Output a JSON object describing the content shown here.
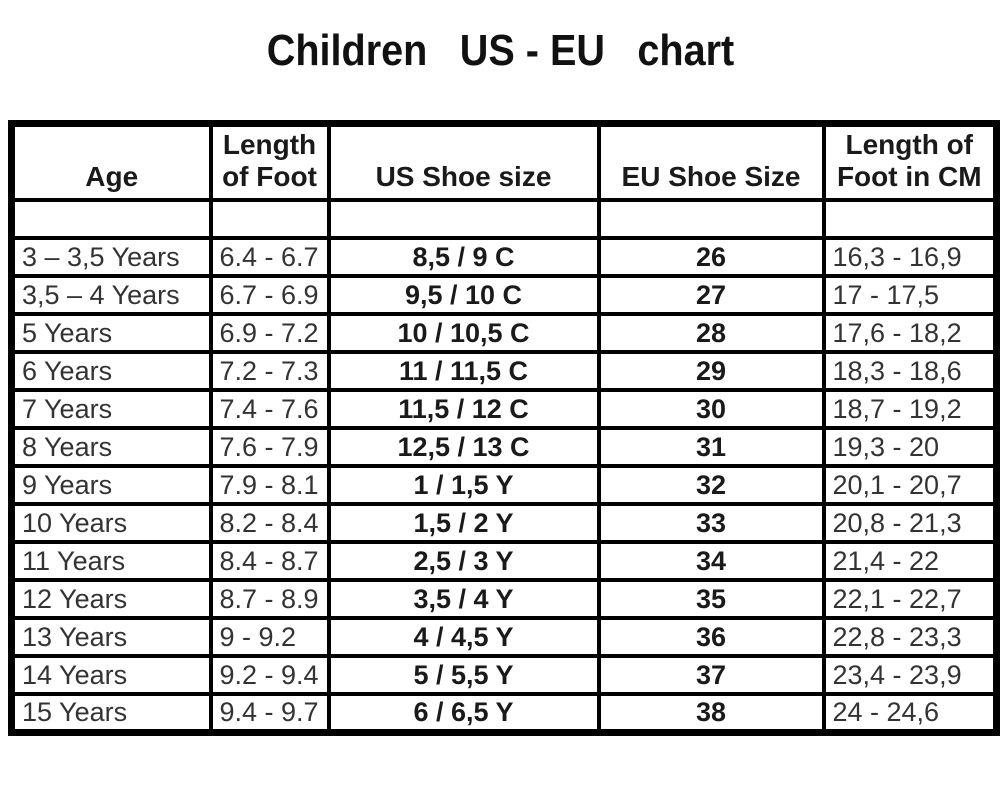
{
  "title": {
    "text": "Children US - EU chart",
    "segments": [
      "Children",
      "US - EU",
      "chart"
    ]
  },
  "colors": {
    "background": "#ffffff",
    "border": "#000000",
    "title_text": "#111111",
    "header_text": "#1a1a1a",
    "cell_text": "#333333",
    "bold_cell_text": "#1a1a1a"
  },
  "table": {
    "header_lines": [
      [
        "Age"
      ],
      [
        "Length",
        "of Foot"
      ],
      [
        "US Shoe size"
      ],
      [
        "EU Shoe Size"
      ],
      [
        "Length of",
        "Foot in CM"
      ]
    ]
  },
  "chart_data": {
    "type": "table",
    "title": "Children US - EU chart",
    "columns": [
      "Age",
      "Length of Foot",
      "US Shoe size",
      "EU Shoe Size",
      "Length of Foot in CM"
    ],
    "rows": [
      [
        "3 – 3,5 Years",
        "6.4 - 6.7",
        "8,5 / 9 C",
        "26",
        "16,3 - 16,9"
      ],
      [
        "3,5 – 4 Years",
        "6.7 - 6.9",
        "9,5 / 10 C",
        "27",
        "17 - 17,5"
      ],
      [
        "5 Years",
        "6.9 - 7.2",
        "10 / 10,5 C",
        "28",
        "17,6 - 18,2"
      ],
      [
        "6 Years",
        "7.2 - 7.3",
        "11 / 11,5 C",
        "29",
        "18,3 - 18,6"
      ],
      [
        "7 Years",
        "7.4 - 7.6",
        "11,5 / 12 C",
        "30",
        "18,7 - 19,2"
      ],
      [
        "8 Years",
        "7.6 - 7.9",
        "12,5 / 13 C",
        "31",
        "19,3 - 20"
      ],
      [
        "9 Years",
        "7.9 - 8.1",
        "1 / 1,5 Y",
        "32",
        "20,1 - 20,7"
      ],
      [
        "10 Years",
        "8.2 - 8.4",
        "1,5 / 2 Y",
        "33",
        "20,8 - 21,3"
      ],
      [
        "11 Years",
        "8.4 - 8.7",
        "2,5 / 3 Y",
        "34",
        "21,4 - 22"
      ],
      [
        "12 Years",
        "8.7 - 8.9",
        "3,5 / 4 Y",
        "35",
        "22,1 - 22,7"
      ],
      [
        "13 Years",
        "9 - 9.2",
        "4 / 4,5 Y",
        "36",
        "22,8 - 23,3"
      ],
      [
        "14 Years",
        "9.2 - 9.4",
        "5 / 5,5 Y",
        "37",
        "23,4 - 23,9"
      ],
      [
        "15 Years",
        "9.4 - 9.7",
        "6 / 6,5 Y",
        "38",
        "24 - 24,6"
      ]
    ]
  }
}
